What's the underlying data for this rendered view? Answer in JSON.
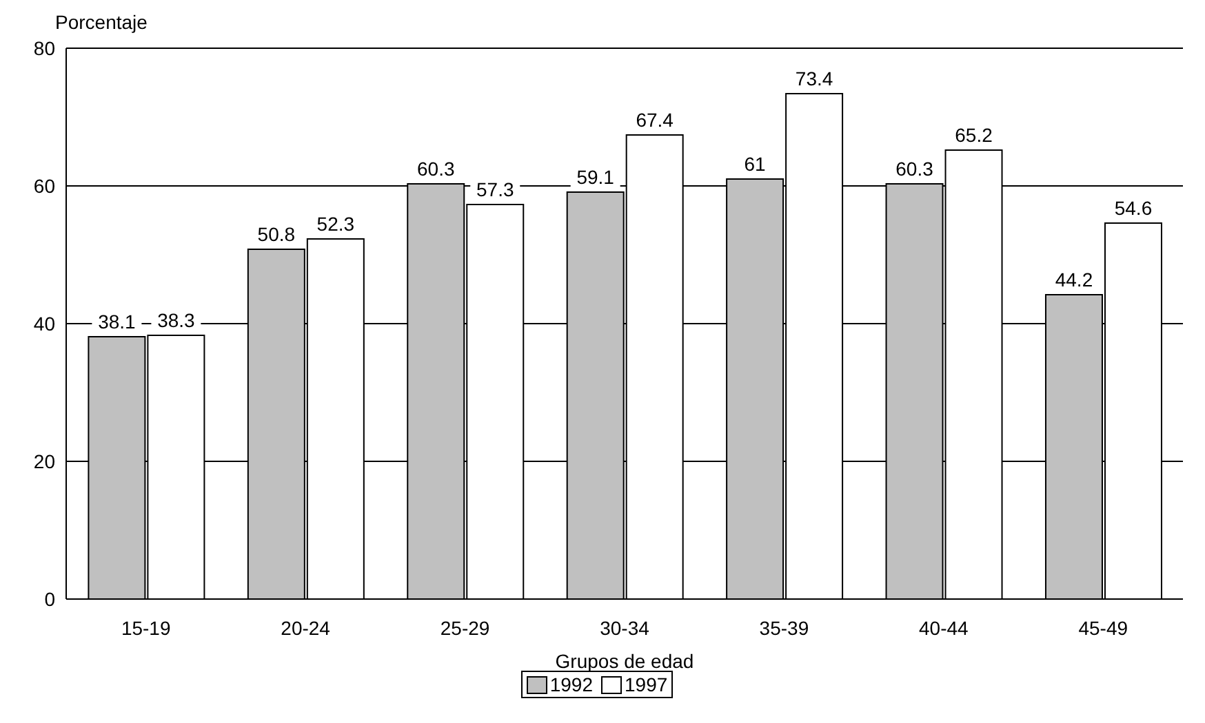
{
  "chart_data": {
    "type": "bar",
    "ylabel": "Porcentaje",
    "xlabel": "Grupos de edad",
    "categories": [
      "15-19",
      "20-24",
      "25-29",
      "30-34",
      "35-39",
      "40-44",
      "45-49"
    ],
    "series": [
      {
        "name": "1992",
        "color": "#c0c0c0",
        "values": [
          38.1,
          50.8,
          60.3,
          59.1,
          61,
          60.3,
          44.2
        ]
      },
      {
        "name": "1997",
        "color": "#ffffff",
        "values": [
          38.3,
          52.3,
          57.3,
          67.4,
          73.4,
          65.2,
          54.6
        ]
      }
    ],
    "ylim": [
      0,
      80
    ],
    "yticks": [
      0,
      20,
      40,
      60,
      80
    ],
    "grid": "y",
    "legend": "bottom",
    "data_labels": true
  }
}
